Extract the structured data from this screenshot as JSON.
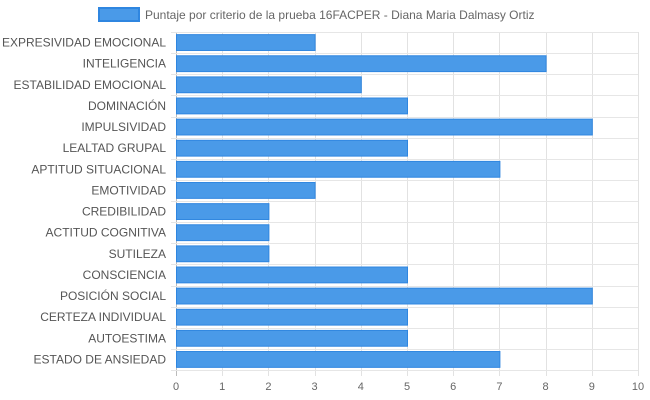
{
  "chart_data": {
    "type": "bar",
    "orientation": "horizontal",
    "title": "",
    "xlabel": "",
    "ylabel": "",
    "categories": [
      "EXPRESIVIDAD EMOCIONAL",
      "INTELIGENCIA",
      "ESTABILIDAD EMOCIONAL",
      "DOMINACIÓN",
      "IMPULSIVIDAD",
      "LEALTAD GRUPAL",
      "APTITUD SITUACIONAL",
      "EMOTIVIDAD",
      "CREDIBILIDAD",
      "ACTITUD COGNITIVA",
      "SUTILEZA",
      "CONSCIENCIA",
      "POSICIÓN SOCIAL",
      "CERTEZA INDIVIDUAL",
      "AUTOESTIMA",
      "ESTADO DE ANSIEDAD"
    ],
    "series": [
      {
        "name": "Puntaje por criterio de la prueba 16FACPER - Diana Maria Dalmasy Ortiz",
        "values": [
          3,
          8,
          4,
          5,
          9,
          5,
          7,
          3,
          2,
          2,
          2,
          5,
          9,
          5,
          5,
          7
        ],
        "color": "#4a9ae8",
        "border_color": "#2f86e0"
      }
    ],
    "xlim": [
      0,
      10
    ],
    "x_ticks": [
      "0",
      "1",
      "2",
      "3",
      "4",
      "5",
      "6",
      "7",
      "8",
      "9",
      "10"
    ],
    "grid": true,
    "legend_position": "top"
  }
}
